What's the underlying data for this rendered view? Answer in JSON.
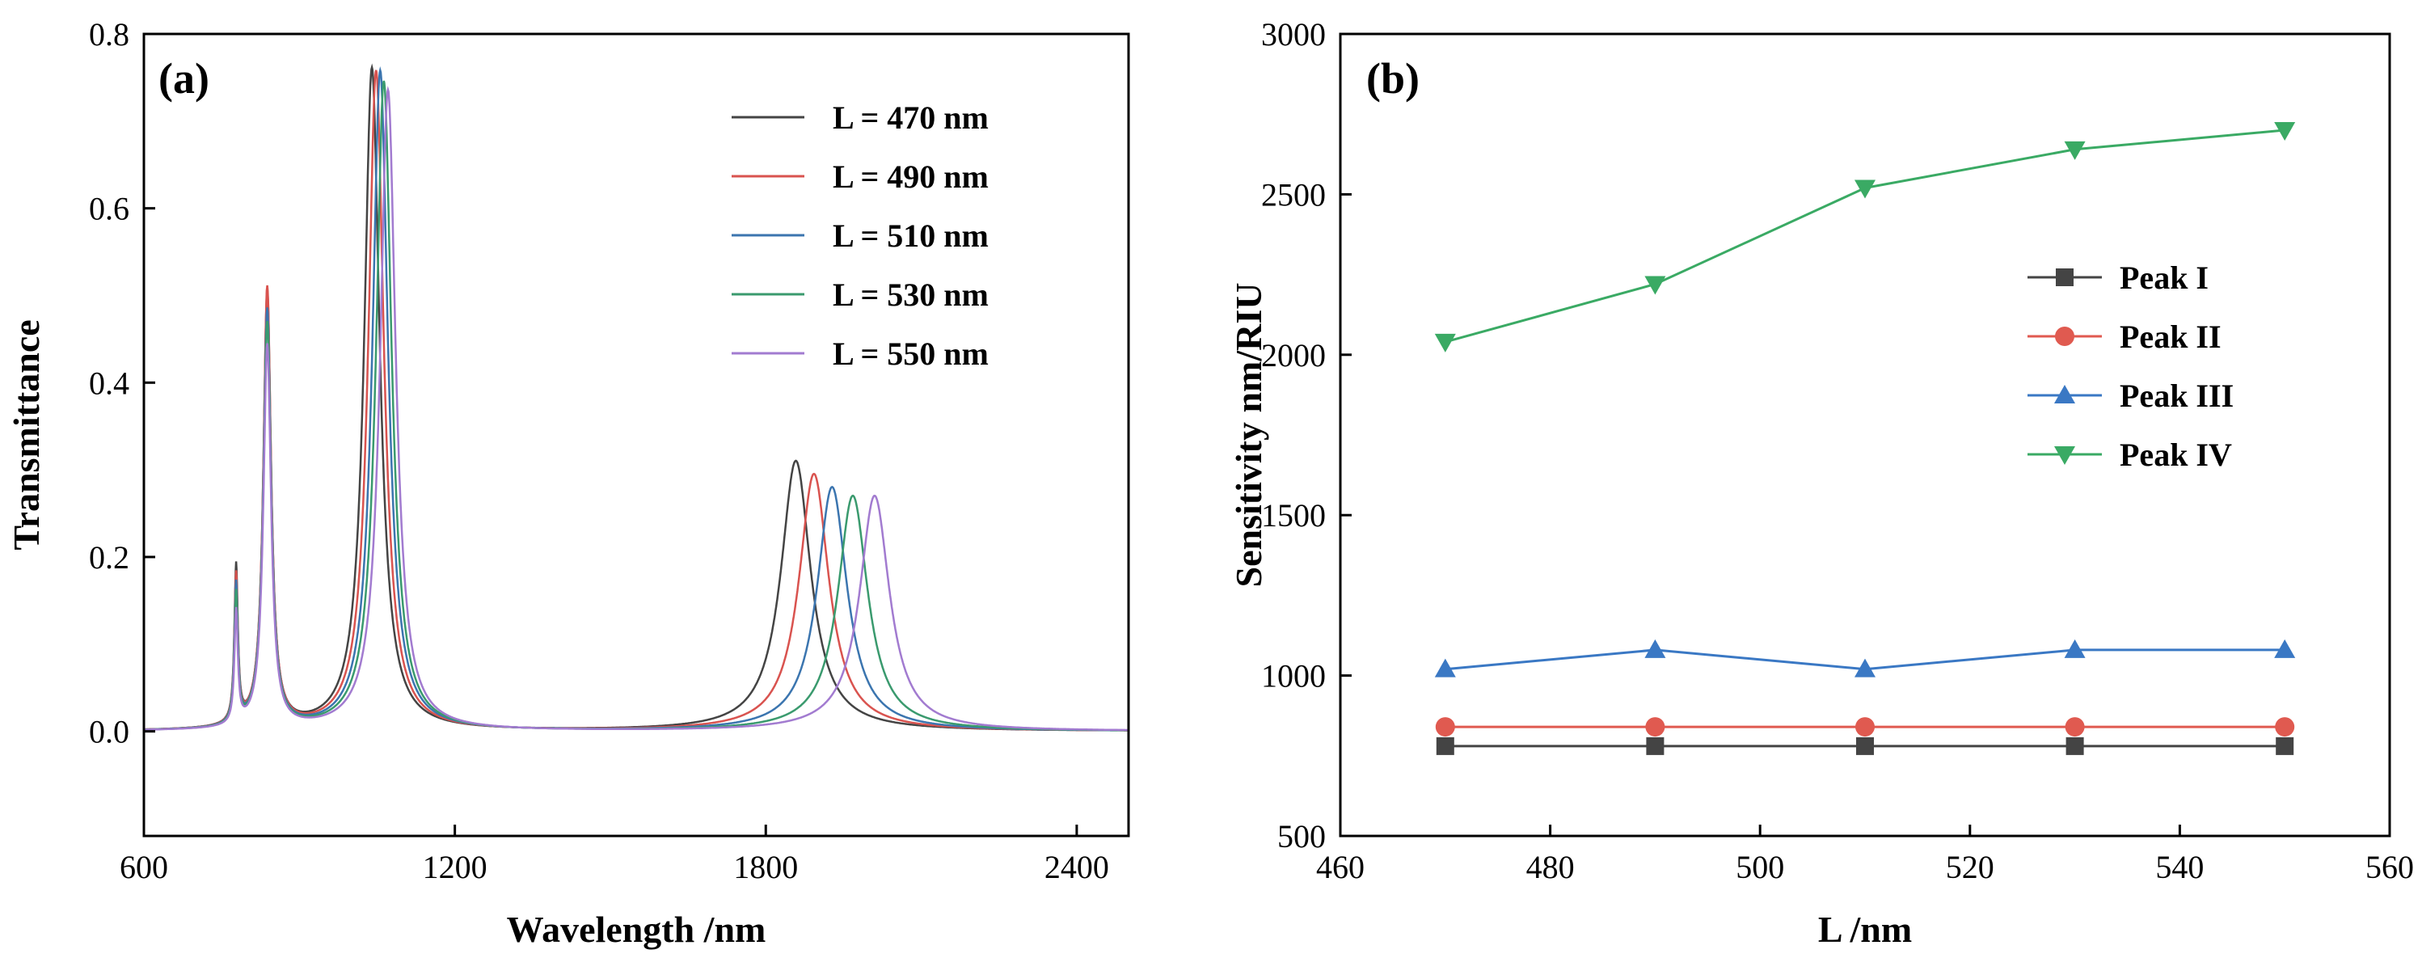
{
  "chart_data": [
    {
      "type": "line",
      "panel_label": "(a)",
      "xlabel": "Wavelength /nm",
      "ylabel": "Transmittance",
      "xlim": [
        600,
        2500
      ],
      "ylim": [
        -0.12,
        0.8
      ],
      "xticks": [
        600,
        1200,
        1800,
        2400
      ],
      "yticks": [
        0.0,
        0.2,
        0.4,
        0.6,
        0.8
      ],
      "tick_labels_x": [
        "600",
        "1200",
        "1800",
        "2400"
      ],
      "tick_labels_y": [
        "0.0",
        "0.2",
        "0.4",
        "0.6",
        "0.8"
      ],
      "legend_position": "top-right",
      "series": [
        {
          "name": "L = 470 nm",
          "color": "#444444",
          "peaks": [
            [
              778,
              0.18,
              4
            ],
            [
              838,
              0.5,
              9
            ],
            [
              1040,
              0.76,
              18
            ],
            [
              1858,
              0.31,
              35
            ]
          ]
        },
        {
          "name": "L = 490 nm",
          "color": "#d9534f",
          "peaks": [
            [
              778,
              0.17,
              4
            ],
            [
              838,
              0.505,
              9
            ],
            [
              1048,
              0.757,
              18
            ],
            [
              1893,
              0.295,
              35
            ]
          ]
        },
        {
          "name": "L = 510 nm",
          "color": "#3b75af",
          "peaks": [
            [
              778,
              0.16,
              4
            ],
            [
              838,
              0.48,
              9
            ],
            [
              1056,
              0.757,
              18
            ],
            [
              1928,
              0.28,
              35
            ]
          ]
        },
        {
          "name": "L = 530 nm",
          "color": "#3a9a6e",
          "peaks": [
            [
              778,
              0.15,
              4
            ],
            [
              838,
              0.465,
              9
            ],
            [
              1063,
              0.745,
              18
            ],
            [
              1968,
              0.27,
              35
            ]
          ]
        },
        {
          "name": "L = 550 nm",
          "color": "#a27bd0",
          "peaks": [
            [
              778,
              0.13,
              4
            ],
            [
              838,
              0.44,
              9
            ],
            [
              1071,
              0.735,
              18
            ],
            [
              2010,
              0.27,
              35
            ]
          ]
        }
      ]
    },
    {
      "type": "line",
      "panel_label": "(b)",
      "xlabel": "L /nm",
      "ylabel": "Sensitivity nm/RIU",
      "xlim": [
        460,
        560
      ],
      "ylim": [
        500,
        3000
      ],
      "xticks": [
        460,
        480,
        500,
        520,
        540,
        560
      ],
      "yticks": [
        500,
        1000,
        1500,
        2000,
        2500,
        3000
      ],
      "tick_labels_x": [
        "460",
        "480",
        "500",
        "520",
        "540",
        "560"
      ],
      "tick_labels_y": [
        "500",
        "1000",
        "1500",
        "2000",
        "2500",
        "3000"
      ],
      "legend_position": "center-right",
      "x": [
        470,
        490,
        510,
        530,
        550
      ],
      "series": [
        {
          "name": "Peak I",
          "color": "#444444",
          "marker": "square",
          "values": [
            780,
            780,
            780,
            780,
            780
          ]
        },
        {
          "name": "Peak II",
          "color": "#e05a50",
          "marker": "circle",
          "values": [
            840,
            840,
            840,
            840,
            840
          ]
        },
        {
          "name": "Peak III",
          "color": "#3a78c4",
          "marker": "triangle-up",
          "values": [
            1020,
            1080,
            1020,
            1080,
            1080
          ]
        },
        {
          "name": "Peak IV",
          "color": "#3aaa64",
          "marker": "triangle-down",
          "values": [
            2040,
            2220,
            2520,
            2640,
            2700
          ]
        }
      ]
    }
  ]
}
